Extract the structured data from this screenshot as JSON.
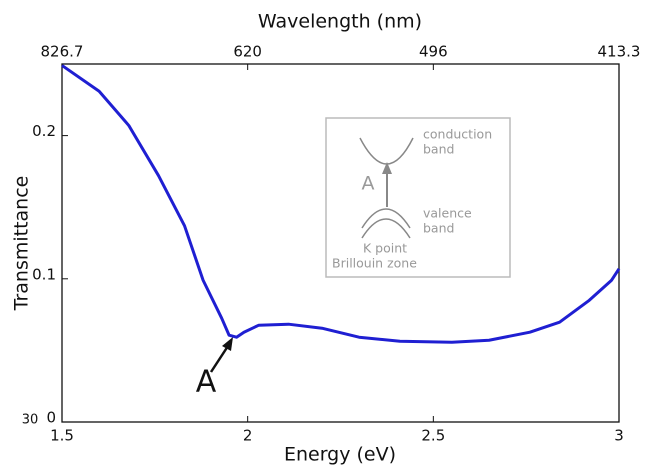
{
  "chart_data": {
    "type": "line",
    "x_label": "Energy (eV)",
    "y_label": "Transmittance",
    "x2_label": "Wavelength (nm)",
    "x": [
      1.5,
      1.6,
      1.68,
      1.76,
      1.83,
      1.88,
      1.93,
      1.95,
      1.97,
      1.99,
      2.03,
      2.11,
      2.2,
      2.3,
      2.41,
      2.55,
      2.65,
      2.76,
      2.84,
      2.92,
      2.98,
      3.0
    ],
    "series": [
      {
        "name": "Transmittance",
        "color": "#1f1fd2",
        "values": [
          0.249,
          0.231,
          0.207,
          0.172,
          0.137,
          0.099,
          0.0725,
          0.0606,
          0.0592,
          0.0627,
          0.0676,
          0.0683,
          0.0655,
          0.0592,
          0.0564,
          0.0557,
          0.0571,
          0.0627,
          0.0697,
          0.085,
          0.099,
          0.107
        ]
      }
    ],
    "xlim": [
      1.5,
      3
    ],
    "xticks": [
      1.5,
      2,
      2.5,
      3
    ],
    "ylim": [
      0,
      0.25
    ],
    "yticks": [
      0,
      0.1,
      0.2
    ],
    "x2ticks": [
      {
        "value": 1.5,
        "label": "826.7"
      },
      {
        "value": 2,
        "label": "620"
      },
      {
        "value": 2.5,
        "label": "496"
      },
      {
        "value": 3,
        "label": "413.3"
      }
    ],
    "annotations": [
      "A",
      "30"
    ],
    "inset": {
      "label": "A",
      "texts": [
        "conduction",
        "band",
        "valence",
        "band",
        "K point",
        "Brillouin zone"
      ]
    }
  }
}
